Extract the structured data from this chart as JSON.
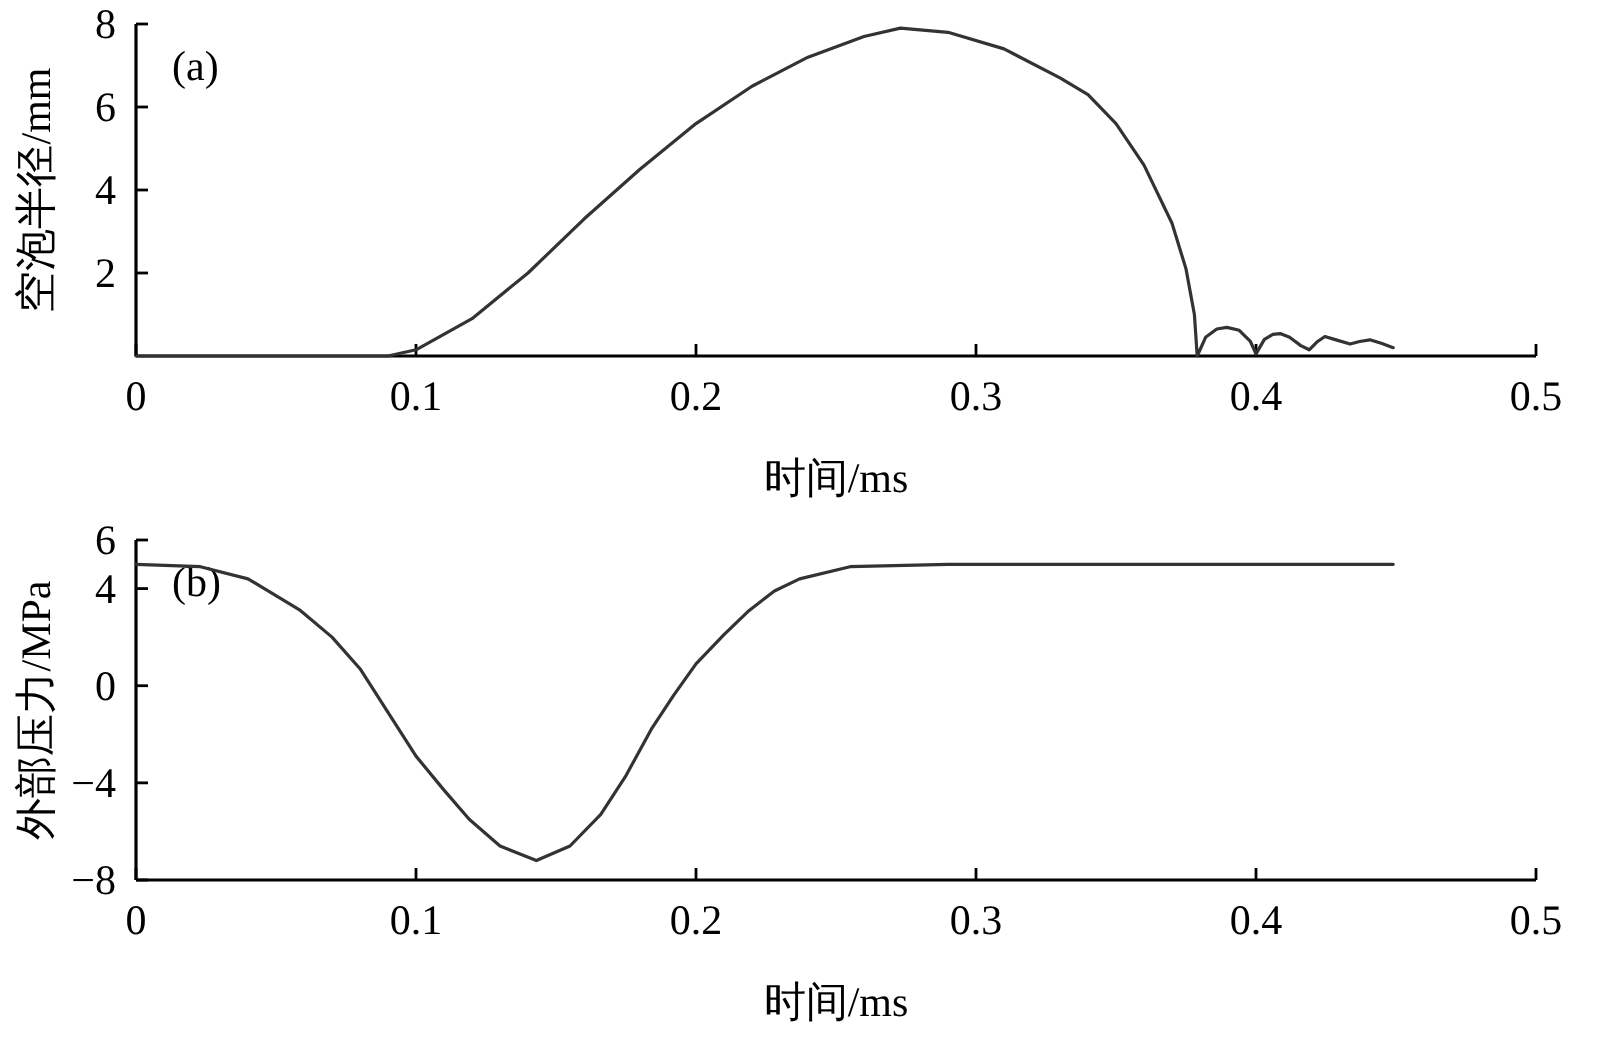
{
  "chart_data": [
    {
      "type": "line",
      "xlabel": "时间/ms",
      "ylabel": "空泡半径/mm",
      "annotations": [
        "(a)"
      ],
      "color": "#333333",
      "marker": "none",
      "line_style": "solid",
      "xlim": [
        0,
        0.5
      ],
      "ylim": [
        0,
        8
      ],
      "xticks": [
        0,
        0.1,
        0.2,
        0.3,
        0.4,
        0.5
      ],
      "yticks": [
        2,
        4,
        6,
        8
      ],
      "x": [
        0,
        0.05,
        0.09,
        0.1,
        0.12,
        0.14,
        0.16,
        0.18,
        0.2,
        0.22,
        0.24,
        0.26,
        0.273,
        0.29,
        0.31,
        0.33,
        0.34,
        0.35,
        0.36,
        0.37,
        0.375,
        0.378,
        0.379,
        0.382,
        0.386,
        0.3896,
        0.394,
        0.398,
        0.4,
        0.403,
        0.406,
        0.4086,
        0.412,
        0.416,
        0.419,
        0.422,
        0.4246,
        0.428,
        0.4336,
        0.437,
        0.4407,
        0.445,
        0.449
      ],
      "values": [
        0,
        0,
        0,
        0.15,
        0.9,
        2.0,
        3.3,
        4.5,
        5.6,
        6.5,
        7.2,
        7.7,
        7.9,
        7.8,
        7.4,
        6.7,
        6.3,
        5.6,
        4.6,
        3.2,
        2.1,
        1.0,
        0,
        0.45,
        0.65,
        0.69,
        0.62,
        0.35,
        0.05,
        0.4,
        0.52,
        0.54,
        0.45,
        0.25,
        0.15,
        0.35,
        0.47,
        0.4,
        0.29,
        0.35,
        0.39,
        0.3,
        0.2
      ]
    },
    {
      "type": "line",
      "xlabel": "时间/ms",
      "ylabel": "外部压力/MPa",
      "annotations": [
        "(b)"
      ],
      "color": "#333333",
      "marker": "none",
      "line_style": "solid",
      "xlim": [
        0,
        0.5
      ],
      "ylim": [
        -8,
        6
      ],
      "xticks": [
        0,
        0.1,
        0.2,
        0.3,
        0.4,
        0.5
      ],
      "yticks": [
        -8,
        -4,
        0,
        4,
        6
      ],
      "x": [
        0,
        0.023,
        0.04,
        0.0587,
        0.07,
        0.08,
        0.09,
        0.1,
        0.11,
        0.119,
        0.13,
        0.143,
        0.155,
        0.166,
        0.175,
        0.184,
        0.192,
        0.2,
        0.21,
        0.219,
        0.228,
        0.237,
        0.255,
        0.29,
        0.35,
        0.449
      ],
      "values": [
        5.0,
        4.9,
        4.4,
        3.1,
        2.0,
        0.7,
        -1.1,
        -2.9,
        -4.3,
        -5.5,
        -6.6,
        -7.2,
        -6.6,
        -5.3,
        -3.7,
        -1.8,
        -0.4,
        0.9,
        2.1,
        3.1,
        3.9,
        4.4,
        4.9,
        5.0,
        5.0,
        5.0
      ]
    }
  ]
}
